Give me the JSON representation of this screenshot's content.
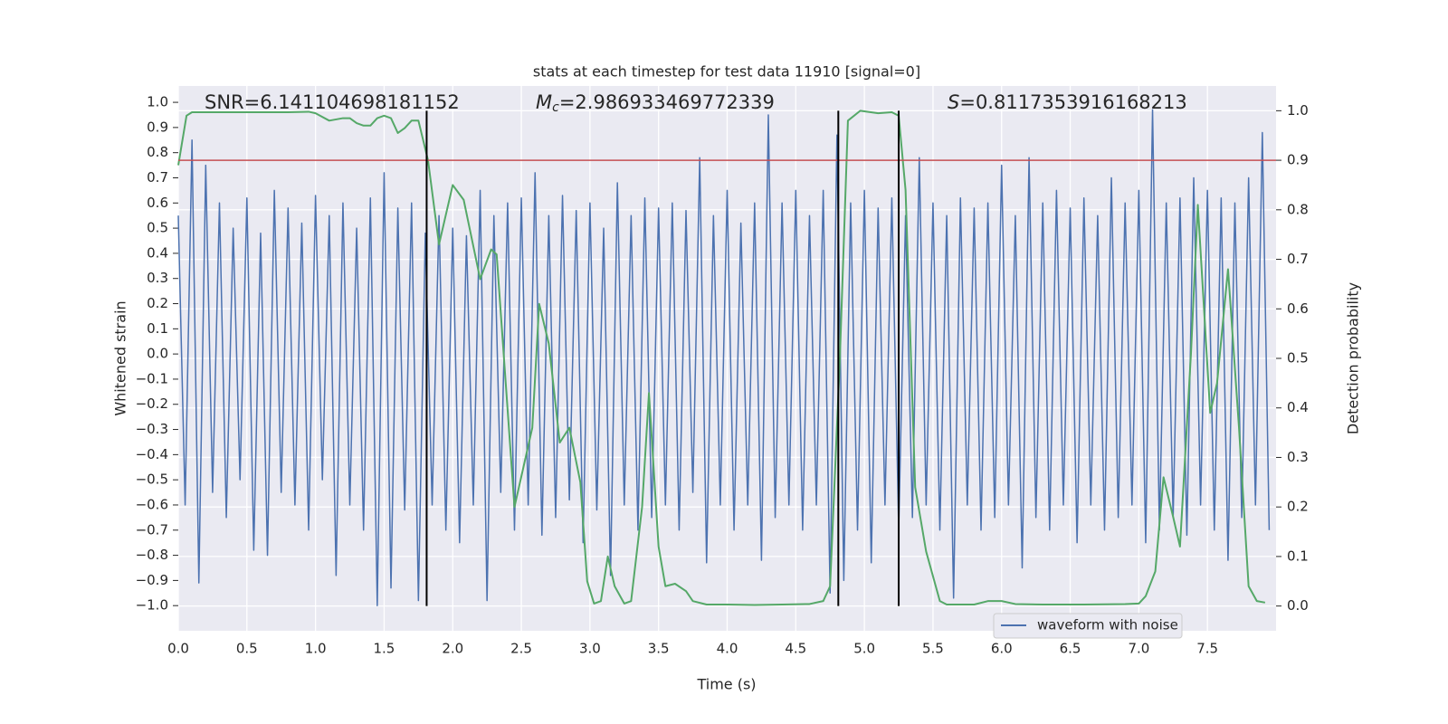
{
  "chart_data": {
    "type": "line",
    "title": "stats at each timestep for test data 11910 [signal=0]",
    "xlabel": "Time (s)",
    "ylabel": "Whitened strain",
    "y2label": "Detection probability",
    "xlim": [
      0,
      8
    ],
    "ylim": [
      -1.1,
      1.065
    ],
    "y2lim": [
      -0.05,
      1.05
    ],
    "grid": "y2",
    "background": "#eaeaf2",
    "legend": "lower right",
    "xticks": [
      {
        "value": 0,
        "label": "0.0"
      },
      {
        "value": 0.5,
        "label": "0.5"
      },
      {
        "value": 1,
        "label": "1.0"
      },
      {
        "value": 1.5,
        "label": "1.5"
      },
      {
        "value": 2,
        "label": "2.0"
      },
      {
        "value": 2.5,
        "label": "2.5"
      },
      {
        "value": 3,
        "label": "3.0"
      },
      {
        "value": 3.5,
        "label": "3.5"
      },
      {
        "value": 4,
        "label": "4.0"
      },
      {
        "value": 4.5,
        "label": "4.5"
      },
      {
        "value": 5,
        "label": "5.0"
      },
      {
        "value": 5.5,
        "label": "5.5"
      },
      {
        "value": 6,
        "label": "6.0"
      },
      {
        "value": 6.5,
        "label": "6.5"
      },
      {
        "value": 7,
        "label": "7.0"
      },
      {
        "value": 7.5,
        "label": "7.5"
      }
    ],
    "yticks": [
      {
        "value": 1,
        "label": "1.0"
      },
      0.9,
      0.8,
      0.7,
      0.6,
      0.5,
      0.4,
      0.3,
      0.2,
      0.1,
      {
        "value": 0,
        "label": "0.0"
      },
      {
        "value": -0.1,
        "label": "−0.1"
      },
      {
        "value": -0.2,
        "label": "−0.2"
      },
      {
        "value": -0.3,
        "label": "−0.3"
      },
      {
        "value": -0.4,
        "label": "−0.4"
      },
      {
        "value": -0.5,
        "label": "−0.5"
      },
      {
        "value": -0.6,
        "label": "−0.6"
      },
      {
        "value": -0.7,
        "label": "−0.7"
      },
      {
        "value": -0.8,
        "label": "−0.8"
      },
      {
        "value": -0.9,
        "label": "−0.9"
      },
      {
        "value": -1,
        "label": "−1.0"
      }
    ],
    "y2ticks": [
      {
        "value": 0,
        "label": "0.0"
      },
      0.1,
      0.2,
      0.3,
      0.4,
      0.5,
      0.6,
      0.7,
      0.8,
      0.9,
      {
        "value": 1,
        "label": "1.0"
      }
    ],
    "annotations": [
      {
        "text": "SNR=6.141104698181152"
      },
      {
        "symbol": "M",
        "sub": "c",
        "text": "=2.986933469772339"
      },
      {
        "symbol": "S",
        "text": "=0.8117353916168213"
      }
    ],
    "hlines": [
      {
        "y2": 0.9,
        "color": "#c44e52"
      }
    ],
    "vlines": [
      {
        "x": 1.81,
        "y2": [
          0,
          1
        ]
      },
      {
        "x": 4.81,
        "y2": [
          0,
          1
        ]
      },
      {
        "x": 5.25,
        "y2": [
          0,
          1
        ]
      }
    ],
    "series": [
      {
        "name": "waveform with noise",
        "color": "#4c72b0",
        "x": [
          0,
          0.05,
          0.1,
          0.15,
          0.2,
          0.25,
          0.3,
          0.35,
          0.4,
          0.45,
          0.5,
          0.55,
          0.6,
          0.65,
          0.7,
          0.75,
          0.8,
          0.85,
          0.9,
          0.95,
          1,
          1.05,
          1.1,
          1.15,
          1.2,
          1.25,
          1.3,
          1.35,
          1.4,
          1.45,
          1.5,
          1.55,
          1.6,
          1.65,
          1.7,
          1.75,
          1.8,
          1.85,
          1.9,
          1.95,
          2,
          2.05,
          2.1,
          2.15,
          2.2,
          2.25,
          2.3,
          2.35,
          2.4,
          2.45,
          2.5,
          2.55,
          2.6,
          2.65,
          2.7,
          2.75,
          2.8,
          2.85,
          2.9,
          2.95,
          3,
          3.05,
          3.1,
          3.15,
          3.2,
          3.25,
          3.3,
          3.35,
          3.4,
          3.45,
          3.5,
          3.55,
          3.6,
          3.65,
          3.7,
          3.75,
          3.8,
          3.85,
          3.9,
          3.95,
          4,
          4.05,
          4.1,
          4.15,
          4.2,
          4.25,
          4.3,
          4.35,
          4.4,
          4.45,
          4.5,
          4.55,
          4.6,
          4.65,
          4.7,
          4.75,
          4.8,
          4.85,
          4.9,
          4.95,
          5,
          5.05,
          5.1,
          5.15,
          5.2,
          5.25,
          5.3,
          5.35,
          5.4,
          5.45,
          5.5,
          5.55,
          5.6,
          5.65,
          5.7,
          5.75,
          5.8,
          5.85,
          5.9,
          5.95,
          6,
          6.05,
          6.1,
          6.15,
          6.2,
          6.25,
          6.3,
          6.35,
          6.4,
          6.45,
          6.5,
          6.55,
          6.6,
          6.65,
          6.7,
          6.75,
          6.8,
          6.85,
          6.9,
          6.95,
          7,
          7.05,
          7.1,
          7.15,
          7.2,
          7.25,
          7.3,
          7.35,
          7.4,
          7.45,
          7.5,
          7.55,
          7.6,
          7.65,
          7.7,
          7.75,
          7.8,
          7.85,
          7.9,
          7.95
        ],
        "values": [
          0.55,
          -0.6,
          0.85,
          -0.91,
          0.75,
          -0.55,
          0.6,
          -0.65,
          0.5,
          -0.5,
          0.62,
          -0.78,
          0.48,
          -0.8,
          0.65,
          -0.55,
          0.58,
          -0.6,
          0.52,
          -0.7,
          0.63,
          -0.5,
          0.55,
          -0.88,
          0.6,
          -0.6,
          0.5,
          -0.7,
          0.62,
          -1.0,
          0.72,
          -0.93,
          0.58,
          -0.62,
          0.6,
          -0.98,
          0.48,
          -0.6,
          0.55,
          -0.7,
          0.5,
          -0.75,
          0.47,
          -0.6,
          0.65,
          -0.98,
          0.55,
          -0.55,
          0.6,
          -0.7,
          0.62,
          -0.6,
          0.72,
          -0.72,
          0.55,
          -0.65,
          0.63,
          -0.58,
          0.57,
          -0.75,
          0.6,
          -0.62,
          0.5,
          -0.88,
          0.68,
          -0.6,
          0.55,
          -0.7,
          0.62,
          -0.65,
          0.58,
          -0.6,
          0.6,
          -0.7,
          0.57,
          -0.55,
          0.78,
          -0.83,
          0.55,
          -0.6,
          0.65,
          -0.7,
          0.52,
          -0.6,
          0.6,
          -0.82,
          0.95,
          -0.65,
          0.6,
          -0.6,
          0.65,
          -0.7,
          0.55,
          -0.6,
          0.65,
          -0.95,
          0.87,
          -0.9,
          0.6,
          -0.7,
          0.65,
          -0.83,
          0.58,
          -0.6,
          0.62,
          -0.7,
          0.55,
          -0.65,
          0.78,
          -0.6,
          0.6,
          -0.7,
          0.55,
          -0.97,
          0.62,
          -0.6,
          0.58,
          -0.7,
          0.6,
          -0.65,
          0.75,
          -0.6,
          0.55,
          -0.85,
          0.78,
          -0.65,
          0.6,
          -0.7,
          0.65,
          -0.6,
          0.58,
          -0.75,
          0.62,
          -0.6,
          0.55,
          -0.7,
          0.7,
          -0.65,
          0.6,
          -0.6,
          0.65,
          -0.75,
          0.97,
          -0.7,
          0.6,
          -0.65,
          0.62,
          -0.72,
          0.7,
          -0.6,
          0.65,
          -0.7,
          0.62,
          -0.82,
          0.6,
          -0.65,
          0.7,
          -0.6,
          0.88,
          -0.7
        ]
      },
      {
        "axis": "y2",
        "color": "#55a868",
        "x": [
          0,
          0.06,
          0.1,
          0.2,
          0.4,
          0.6,
          0.8,
          0.95,
          1,
          1.1,
          1.2,
          1.25,
          1.3,
          1.35,
          1.4,
          1.45,
          1.5,
          1.55,
          1.6,
          1.65,
          1.7,
          1.75,
          1.82,
          1.9,
          2,
          2.08,
          2.2,
          2.28,
          2.32,
          2.45,
          2.58,
          2.63,
          2.7,
          2.78,
          2.85,
          2.93,
          2.98,
          3.03,
          3.08,
          3.13,
          3.18,
          3.25,
          3.3,
          3.38,
          3.43,
          3.5,
          3.55,
          3.62,
          3.7,
          3.75,
          3.85,
          4,
          4.2,
          4.4,
          4.6,
          4.7,
          4.75,
          4.82,
          4.88,
          4.97,
          5.1,
          5.2,
          5.25,
          5.3,
          5.37,
          5.45,
          5.55,
          5.6,
          5.8,
          5.9,
          6,
          6.1,
          6.3,
          6.6,
          6.9,
          7,
          7.05,
          7.12,
          7.18,
          7.25,
          7.3,
          7.38,
          7.43,
          7.52,
          7.57,
          7.65,
          7.73,
          7.8,
          7.86,
          7.92
        ],
        "values": [
          0.89,
          0.99,
          0.997,
          0.997,
          0.997,
          0.997,
          0.997,
          0.998,
          0.995,
          0.98,
          0.985,
          0.985,
          0.975,
          0.97,
          0.97,
          0.985,
          0.99,
          0.985,
          0.955,
          0.965,
          0.98,
          0.98,
          0.9,
          0.73,
          0.85,
          0.82,
          0.66,
          0.72,
          0.71,
          0.2,
          0.36,
          0.61,
          0.53,
          0.33,
          0.36,
          0.25,
          0.05,
          0.005,
          0.01,
          0.1,
          0.04,
          0.005,
          0.01,
          0.2,
          0.43,
          0.12,
          0.04,
          0.045,
          0.03,
          0.01,
          0.003,
          0.003,
          0.002,
          0.003,
          0.004,
          0.01,
          0.04,
          0.49,
          0.98,
          1.0,
          0.995,
          0.997,
          0.99,
          0.84,
          0.24,
          0.11,
          0.01,
          0.003,
          0.003,
          0.01,
          0.01,
          0.004,
          0.003,
          0.003,
          0.004,
          0.005,
          0.02,
          0.07,
          0.26,
          0.18,
          0.12,
          0.51,
          0.81,
          0.39,
          0.45,
          0.68,
          0.36,
          0.04,
          0.01,
          0.007
        ]
      }
    ]
  }
}
